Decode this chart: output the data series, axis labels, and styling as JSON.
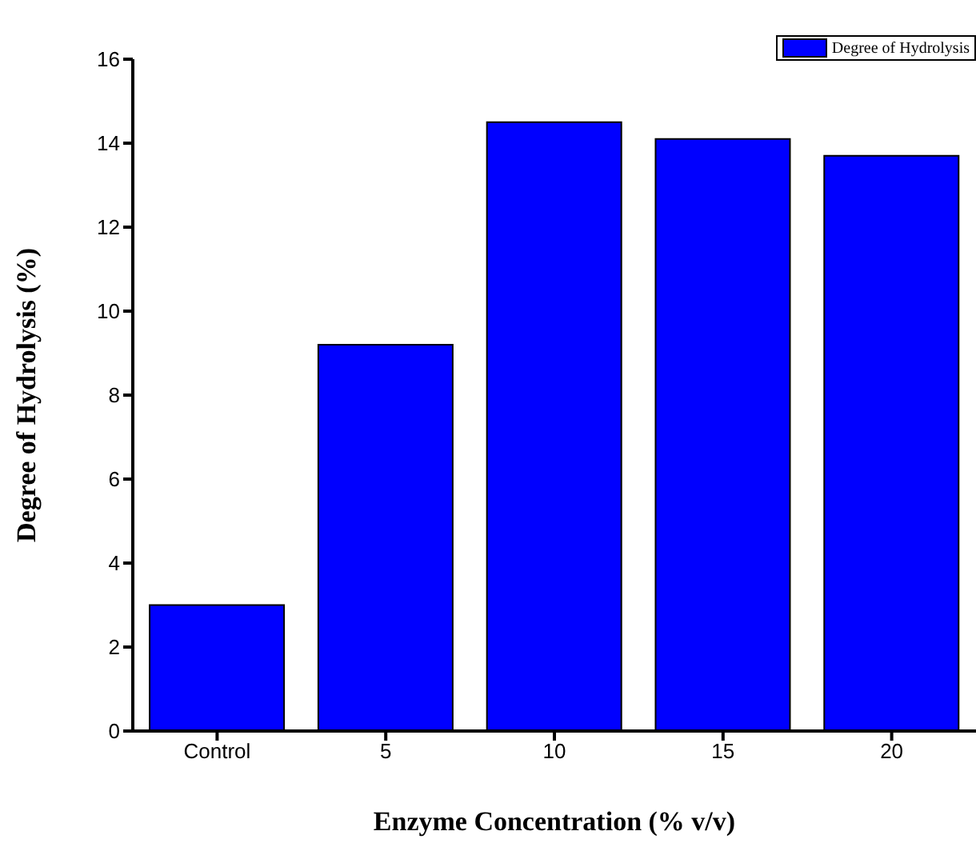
{
  "chart_data": {
    "type": "bar",
    "xlabel": "Enzyme Concentration (% v/v)",
    "ylabel": "Degree of Hydrolysis (%)",
    "categories": [
      "Control",
      "5",
      "10",
      "15",
      "20"
    ],
    "series": [
      {
        "name": "Degree of Hydrolysis",
        "color": "#0000ff",
        "values": [
          3.0,
          9.2,
          14.5,
          14.1,
          13.7
        ]
      }
    ],
    "ylim": [
      0,
      16
    ],
    "yticks": [
      0,
      2,
      4,
      6,
      8,
      10,
      12,
      14,
      16
    ],
    "grid": false,
    "legend": "top right"
  }
}
